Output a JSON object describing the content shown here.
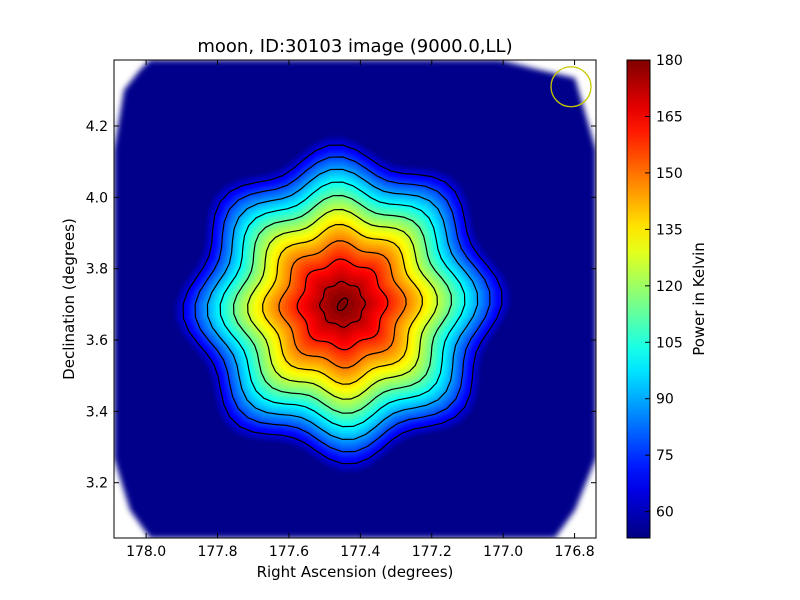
{
  "chart_data": {
    "type": "heatmap",
    "title": "moon, ID:30103 image (9000.0,LL)",
    "xlabel": "Right Ascension (degrees)",
    "ylabel": "Declination (degrees)",
    "colorbar_label": "Power in Kelvin",
    "colormap": "jet",
    "xlim": [
      178.09,
      176.74
    ],
    "ylim": [
      3.045,
      4.385
    ],
    "x_ticks": [
      178.0,
      177.8,
      177.6,
      177.4,
      177.2,
      177.0,
      176.8
    ],
    "x_tick_labels": [
      "178.0",
      "177.8",
      "177.6",
      "177.4",
      "177.2",
      "177.0",
      "176.8"
    ],
    "y_ticks": [
      3.2,
      3.4,
      3.6,
      3.8,
      4.0,
      4.2
    ],
    "y_tick_labels": [
      "3.2",
      "3.4",
      "3.6",
      "3.8",
      "4.0",
      "4.2"
    ],
    "color_range": [
      53,
      180
    ],
    "colorbar_ticks": [
      60,
      75,
      90,
      105,
      120,
      135,
      150,
      165,
      180
    ],
    "colorbar_tick_labels": [
      "60",
      "75",
      "90",
      "105",
      "120",
      "135",
      "150",
      "165",
      "180"
    ],
    "source": {
      "center_ra": 177.45,
      "center_dec": 3.7,
      "peak_kelvin": 180,
      "background_kelvin": 54,
      "contour_levels": [
        66,
        78,
        90,
        102,
        114,
        126,
        138,
        150,
        162,
        174
      ]
    },
    "beam_marker": {
      "ra": 176.81,
      "dec": 4.31,
      "color": "#c8c800"
    },
    "grid": false
  },
  "colors": {
    "background_map": "#00008b",
    "contour_line": "#000000",
    "frame": "#000000"
  }
}
